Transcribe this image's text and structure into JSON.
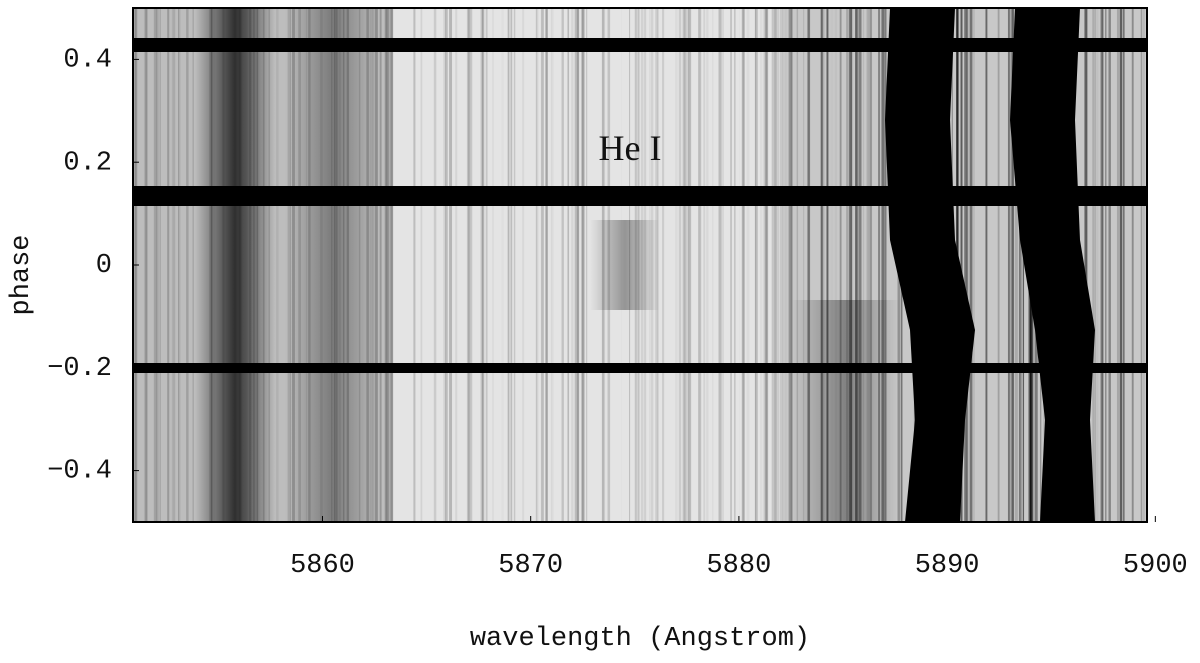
{
  "chart_data": {
    "type": "spectrogram",
    "xlabel": "wavelength (Angstrom)",
    "ylabel": "phase",
    "annotation": "He I",
    "xlim": [
      5850.9,
      5899.6
    ],
    "xticks": [
      5860,
      5870,
      5880,
      5890,
      5900
    ],
    "ylim": [
      -0.5,
      0.5
    ],
    "yticks": [
      {
        "value": -0.4,
        "label": "−0.4"
      },
      {
        "value": -0.2,
        "label": "−0.2"
      },
      0,
      0.2,
      0.4
    ],
    "grid": false
  }
}
